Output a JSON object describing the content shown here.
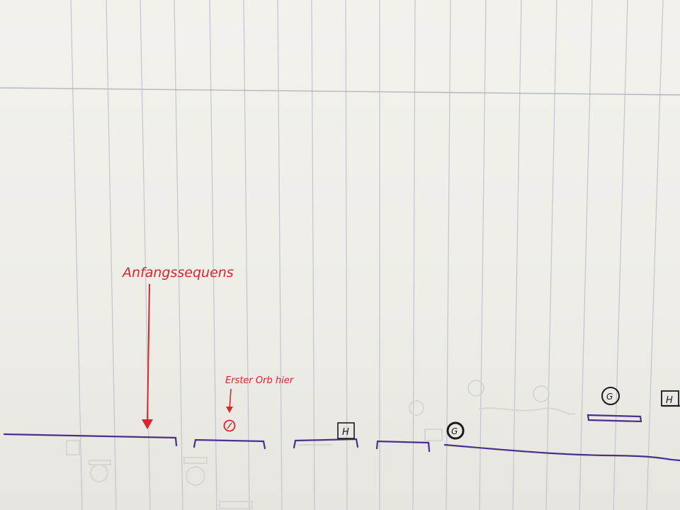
{
  "sketch": {
    "annotations": {
      "start_sequence": "Anfangssequens",
      "first_orb": "Erster Orb hier"
    },
    "markers": {
      "health_box_left": "H",
      "health_box_right": "H",
      "orb_g_low": "G",
      "orb_g_high": "G"
    },
    "colors": {
      "paper": "#eeede8",
      "rule_lines": "#b9bcc2",
      "ink_red": "#d8262c",
      "ink_purple": "#4a2f8c",
      "ink_black": "#1a1a1a"
    }
  }
}
